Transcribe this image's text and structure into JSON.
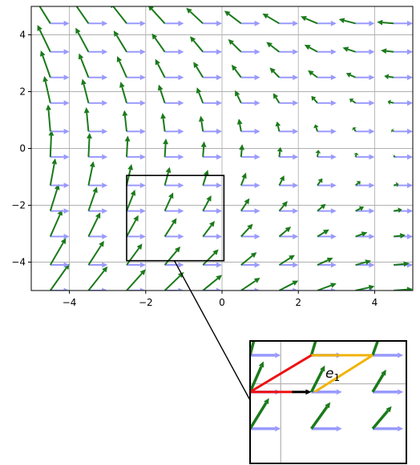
{
  "chart_data": {
    "type": "quiver",
    "xlim": [
      -5,
      5
    ],
    "ylim": [
      -5,
      5
    ],
    "x_ticks": [
      -4,
      -2,
      0,
      2,
      4
    ],
    "x_tick_labels": [
      "−4",
      "−2",
      "0",
      "2",
      "4"
    ],
    "y_ticks": [
      -4,
      -2,
      0,
      2,
      4
    ],
    "y_tick_labels": [
      "−4",
      "−2",
      "0",
      "2",
      "4"
    ],
    "grid": true,
    "grid_x": [
      -4.5,
      -3.5,
      -2.5,
      -1.5,
      -0.5,
      0.5,
      1.5,
      2.5,
      3.5,
      4.5
    ],
    "grid_y": [
      -5.0,
      -4.1,
      -3.1,
      -2.2,
      -1.3,
      -0.3,
      0.6,
      1.6,
      2.5,
      3.4,
      4.4
    ],
    "series": [
      {
        "field": "u = (1, 0)",
        "color": "#9999ff"
      },
      {
        "field": "v = (-y/5, 1 - x/5) approx.",
        "color": "#1a7a1a"
      }
    ],
    "inset": {
      "xlim": [
        -2.5,
        0.05
      ],
      "ylim": [
        -3.95,
        -0.95
      ],
      "label": "e",
      "label_subscript": "1",
      "parallelogram_colors": {
        "red": "#ee1111",
        "yellow": "#f0b400",
        "vector": "#000000"
      }
    }
  }
}
